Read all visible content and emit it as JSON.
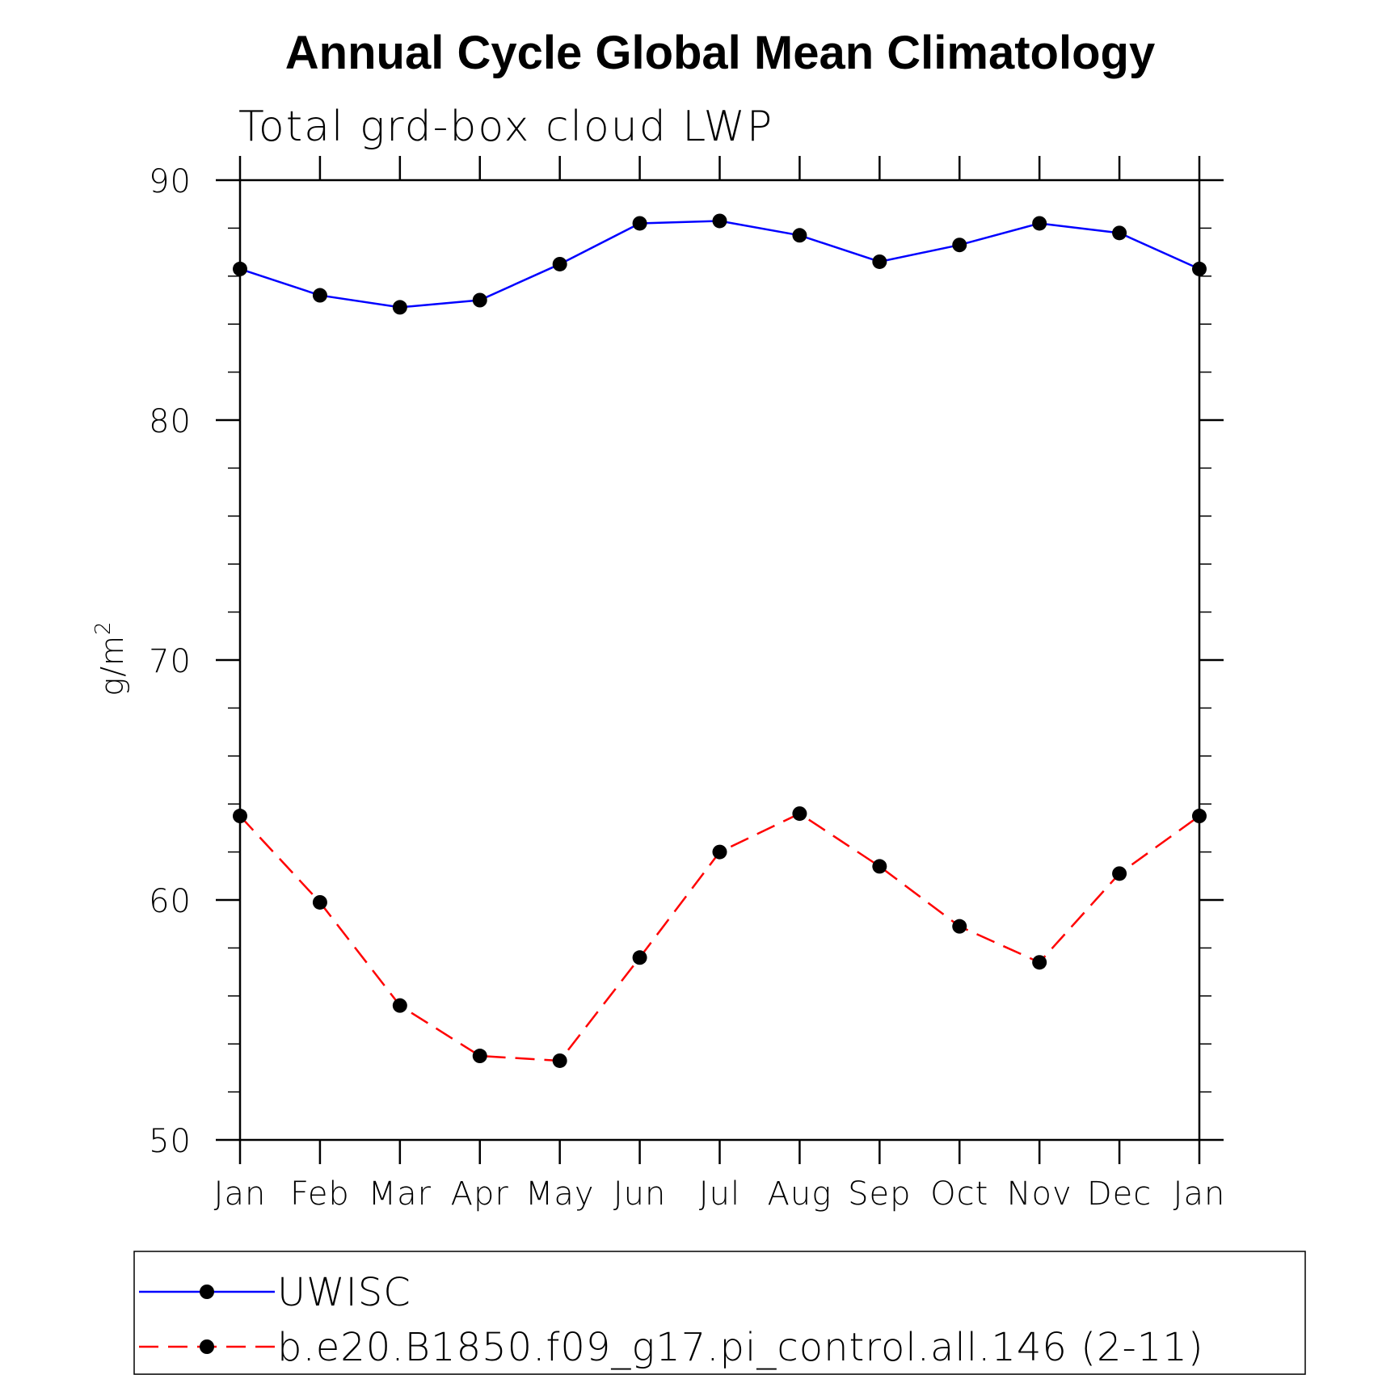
{
  "chart_data": {
    "type": "line",
    "title": "Annual Cycle Global Mean Climatology",
    "subtitle": "Total grd-box cloud LWP",
    "ylabel_base": "g/m",
    "ylabel_sup": "2",
    "ylim": [
      50,
      90
    ],
    "yticks": [
      50,
      60,
      70,
      80,
      90
    ],
    "categories": [
      "Jan",
      "Feb",
      "Mar",
      "Apr",
      "May",
      "Jun",
      "Jul",
      "Aug",
      "Sep",
      "Oct",
      "Nov",
      "Dec",
      "Jan"
    ],
    "series": [
      {
        "name": "UWISC",
        "color": "#0000ff",
        "dash": "solid",
        "values": [
          86.3,
          85.2,
          84.7,
          85.0,
          86.5,
          88.2,
          88.3,
          87.7,
          86.6,
          87.3,
          88.2,
          87.8,
          86.3
        ]
      },
      {
        "name": "b.e20.B1850.f09_g17.pi_control.all.146 (2-11)",
        "color": "#ff0000",
        "dash": "dashed",
        "values": [
          63.5,
          59.9,
          55.6,
          53.5,
          53.3,
          57.6,
          62.0,
          63.6,
          61.4,
          58.9,
          57.4,
          61.1,
          63.5
        ]
      }
    ],
    "legend_position": "bottom"
  }
}
